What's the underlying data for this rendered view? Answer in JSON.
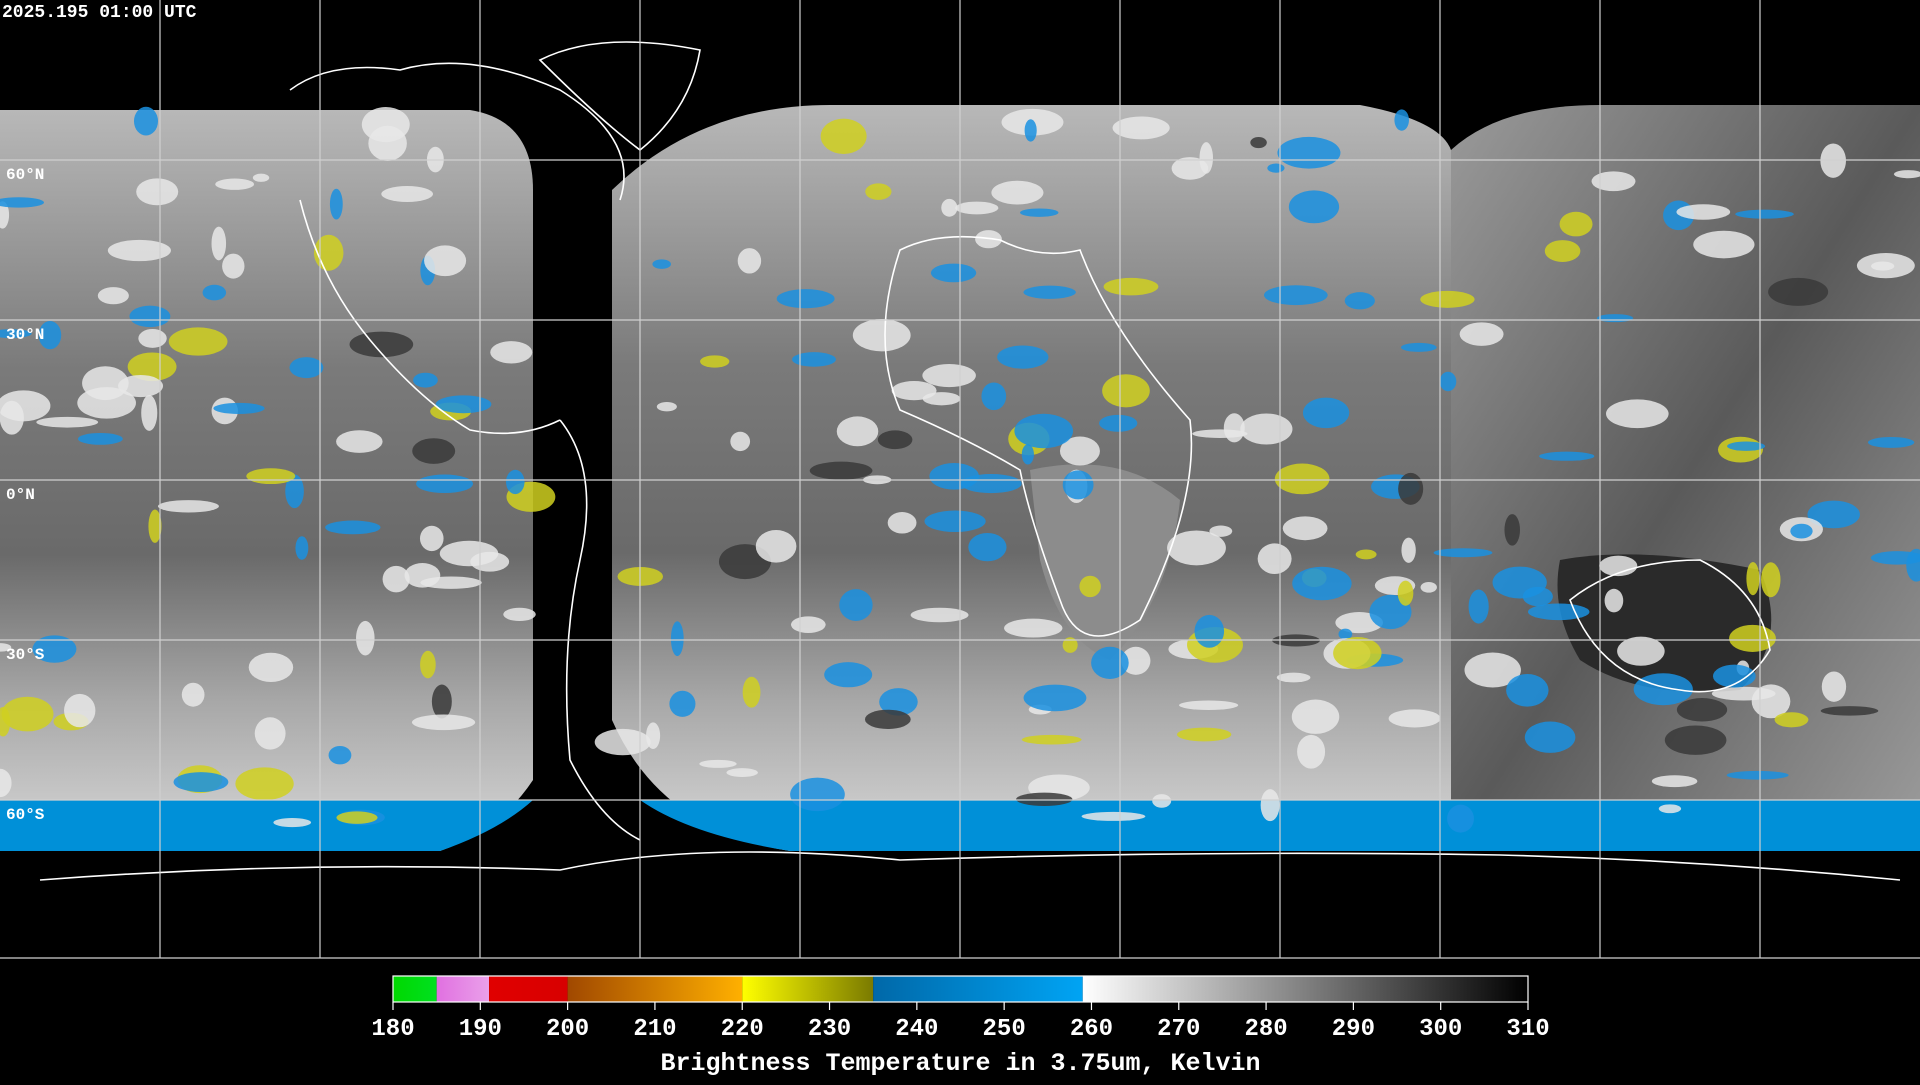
{
  "timestamp": "2025.195 01:00 UTC",
  "latitude_lines": [
    {
      "value": 60,
      "label": "60°N"
    },
    {
      "value": 30,
      "label": "30°N"
    },
    {
      "value": 0,
      "label": "0°N"
    },
    {
      "value": -30,
      "label": "30°S"
    },
    {
      "value": -60,
      "label": "60°S"
    }
  ],
  "colorbar": {
    "title": "Brightness Temperature in 3.75um, Kelvin",
    "range": [
      180,
      310
    ],
    "ticks": [
      180,
      190,
      200,
      210,
      220,
      230,
      240,
      250,
      260,
      270,
      280,
      290,
      300,
      310
    ],
    "segments": [
      {
        "from": 180,
        "to": 185,
        "colors": [
          "#00d800",
          "#00e020"
        ]
      },
      {
        "from": 185,
        "to": 191,
        "colors": [
          "#e070e0",
          "#eaa0ea"
        ]
      },
      {
        "from": 191,
        "to": 200,
        "colors": [
          "#e00000",
          "#d80000"
        ]
      },
      {
        "from": 200,
        "to": 220,
        "colors": [
          "#a04800",
          "#ffb000"
        ]
      },
      {
        "from": 220,
        "to": 235,
        "colors": [
          "#ffff00",
          "#7a7a00"
        ]
      },
      {
        "from": 235,
        "to": 259,
        "colors": [
          "#0068a8",
          "#00a4f4"
        ]
      },
      {
        "from": 259,
        "to": 310,
        "colors": [
          "#ffffff",
          "#000000"
        ]
      }
    ]
  }
}
